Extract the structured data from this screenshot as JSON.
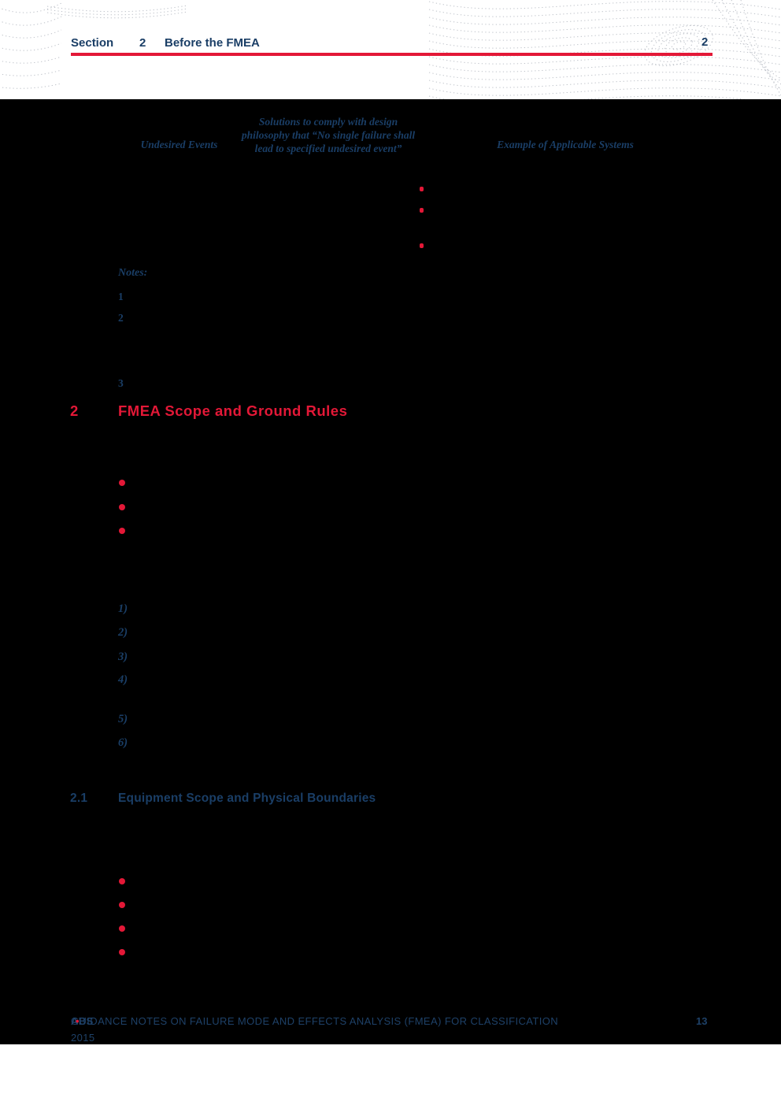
{
  "page": {
    "header": {
      "section_label": "Section",
      "section_number": "2",
      "section_title": "Before the FMEA",
      "page_number": "2"
    },
    "table": {
      "columns": [
        "Undesired Events",
        "Solutions to comply with design philosophy that “No single failure shall lead to specified undesired event”",
        "Example of Applicable Systems"
      ]
    },
    "notes": {
      "label": "Notes:",
      "numbers": [
        "1",
        "2",
        "3"
      ]
    },
    "section_2": {
      "number": "2",
      "title": "FMEA Scope and Ground Rules"
    },
    "numbered_list": [
      "1)",
      "2)",
      "3)",
      "4)",
      "5)",
      "6)"
    ],
    "section_2_1": {
      "number": "2.1",
      "title": "Equipment Scope and Physical Boundaries"
    },
    "footer": {
      "brand": "ABS",
      "title": "GUIDANCE NOTES ON FAILURE MODE AND EFFECTS ANALYSIS (FMEA) FOR CLASSIFICATION",
      "separator": "•",
      "year": "2015",
      "page_number": "13"
    },
    "colors": {
      "navy": "#1a3e66",
      "red": "#e31837",
      "panel": "#000000"
    }
  }
}
